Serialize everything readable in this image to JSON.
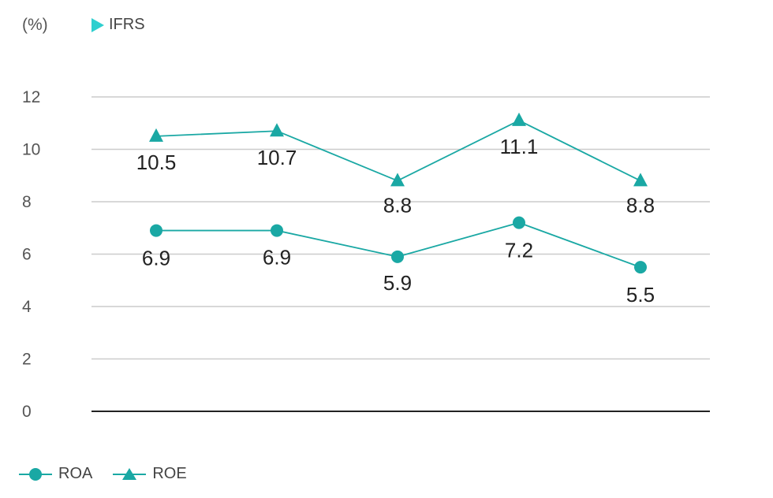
{
  "header": {
    "unit": "(%)",
    "standard": "IFRS"
  },
  "colors": {
    "line": "#1aa8a4",
    "axis": "#222222",
    "grid": "#cccccc",
    "accent": "#2fcfcf"
  },
  "chart_data": {
    "type": "line",
    "categories": [
      "",
      "",
      "",
      "",
      ""
    ],
    "ylim": [
      0,
      12
    ],
    "yticks": [
      0,
      2,
      4,
      6,
      8,
      10,
      12
    ],
    "grid": true,
    "legend_position": "bottom-left",
    "series": [
      {
        "name": "ROA",
        "marker": "circle",
        "values": [
          6.9,
          6.9,
          5.9,
          7.2,
          5.5
        ],
        "labels": [
          "6.9",
          "6.9",
          "5.9",
          "7.2",
          "5.5"
        ]
      },
      {
        "name": "ROE",
        "marker": "triangle",
        "values": [
          10.5,
          10.7,
          8.8,
          11.1,
          8.8
        ],
        "labels": [
          "10.5",
          "10.7",
          "8.8",
          "11.1",
          "8.8"
        ]
      }
    ]
  }
}
